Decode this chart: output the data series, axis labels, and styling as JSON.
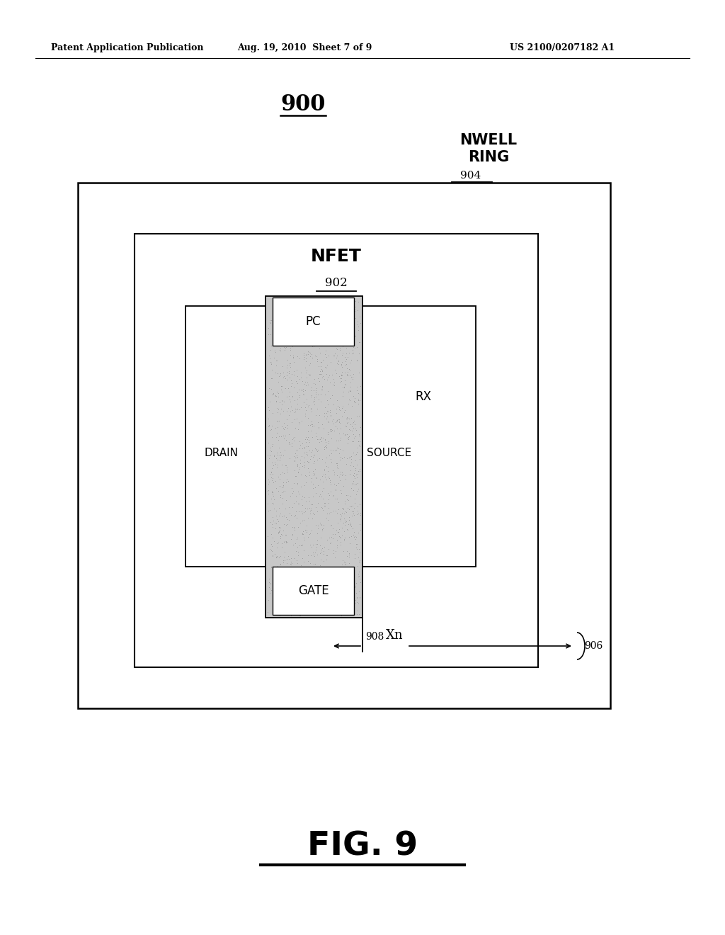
{
  "bg_color": "#ffffff",
  "header_left": "Patent Application Publication",
  "header_mid": "Aug. 19, 2010  Sheet 7 of 9",
  "header_right": "US 2100/0207182 A1",
  "fig_label": "FIG. 9",
  "diagram_number": "900",
  "nwell_label1": "NWELL",
  "nwell_label2": "RING",
  "nwell_number": "904",
  "nfet_label": "NFET",
  "nfet_number": "902",
  "rx_label": "RX",
  "pc_label": "PC",
  "gate_label": "GATE",
  "drain_label": "DRAIN",
  "source_label": "SOURCE",
  "xn_label": "Xn",
  "num_908": "908",
  "num_906": "906",
  "pc_fill_color": "#c8c8c8",
  "stipple_color": "#999999"
}
